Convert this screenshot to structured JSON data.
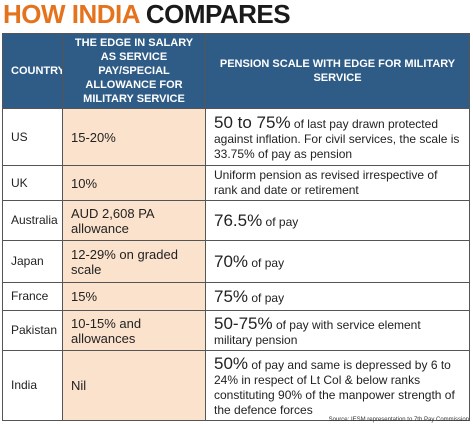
{
  "header": {
    "title_part1": "HOW INDIA",
    "title_part2": "COMPARES"
  },
  "table": {
    "columns": [
      "COUNTRY",
      "THE EDGE IN SALARY AS SERVICE PAY/SPECIAL ALLOWANCE FOR MILITARY SERVICE",
      "PENSION SCALE WITH EDGE FOR MILITARY SERVICE"
    ],
    "rows": [
      {
        "country": "US",
        "edge": "15-20%",
        "pension_highlight": "50 to 75%",
        "pension": "of last pay drawn protected against inflation.  For civil services, the scale is 33.75% of pay as pension"
      },
      {
        "country": "UK",
        "edge": "10%",
        "pension": "Uniform pension as revised irrespective of rank and date or retirement"
      },
      {
        "country": "Australia",
        "edge": "AUD 2,608 PA allowance",
        "pension_highlight": "76.5%",
        "pension": "of pay"
      },
      {
        "country": "Japan",
        "edge": "12-29% on graded scale",
        "pension_highlight": "70%",
        "pension": "of pay"
      },
      {
        "country": "France",
        "edge": "15%",
        "pension_highlight": "75%",
        "pension": "of pay"
      },
      {
        "country": "Pakistan",
        "edge": "10-15% and allowances",
        "pension_highlight": "50-75%",
        "pension": "of pay with service element military pension"
      },
      {
        "country": "India",
        "edge": "Nil",
        "pension_highlight": "50%",
        "pension": "of pay and same is depressed by 6 to 24% in respect of Lt Col & below ranks constituting 90% of the manpower strength of the defence forces"
      }
    ]
  },
  "source": "Source: IESM representation to 7th Pay Commission"
}
